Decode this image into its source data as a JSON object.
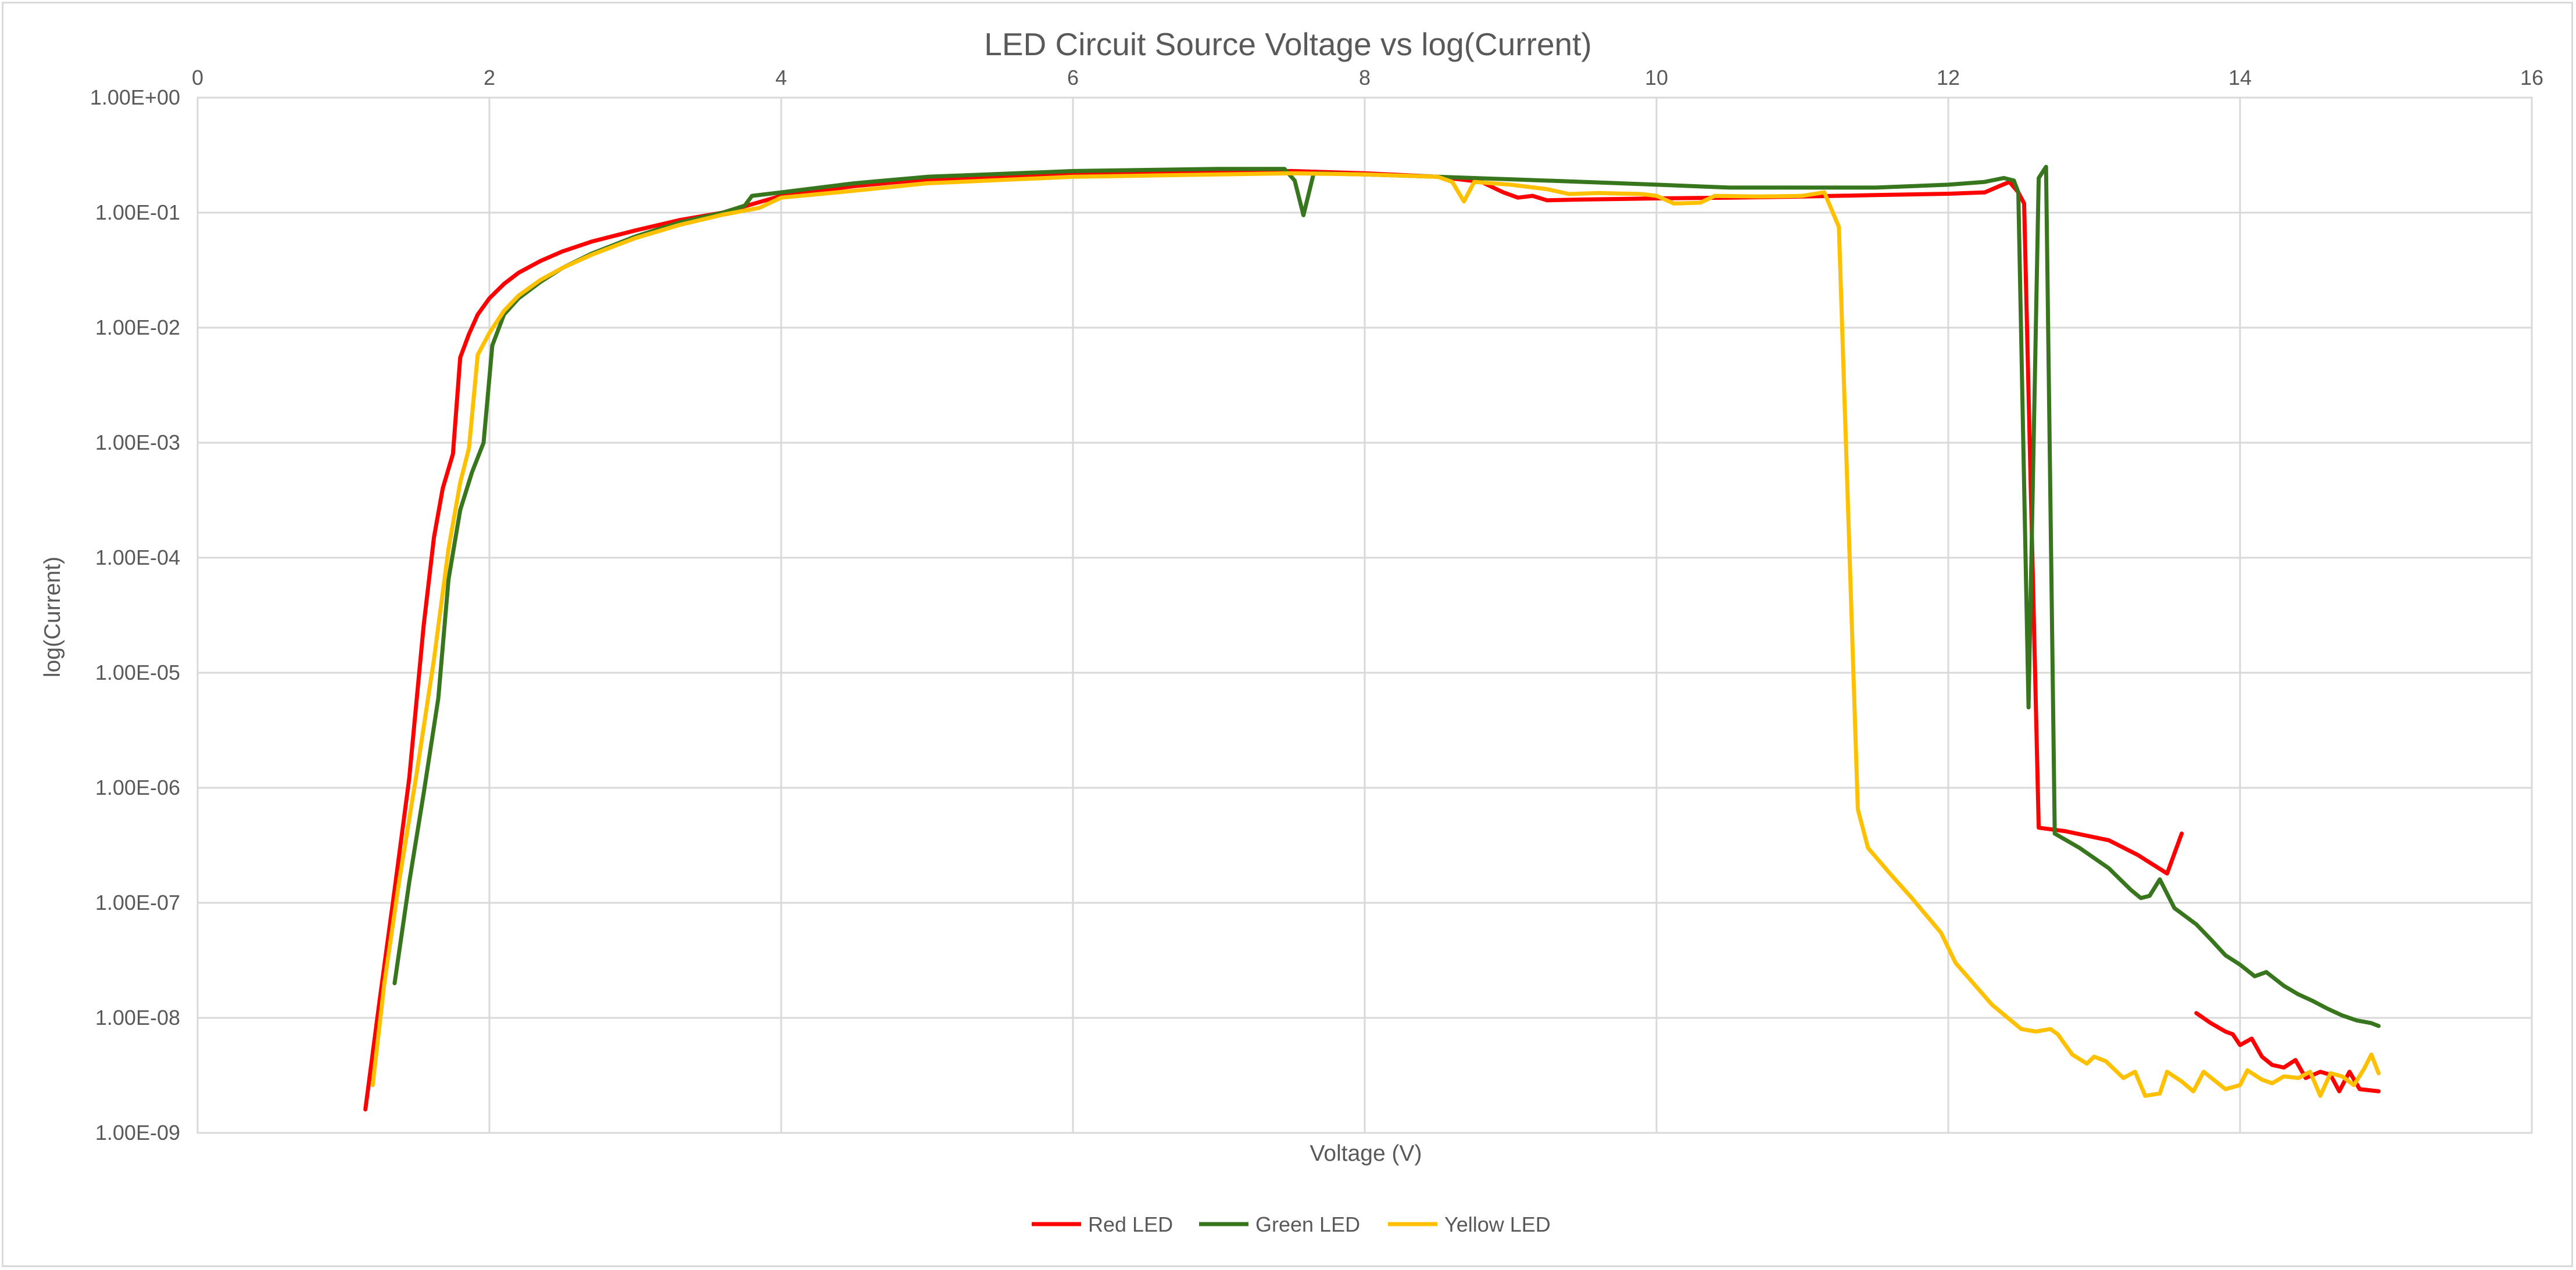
{
  "chart_data": {
    "type": "line",
    "title": "LED Circuit Source Voltage vs log(Current)",
    "xlabel": "Voltage (V)",
    "ylabel": "log(Current)",
    "xlim": [
      0,
      16
    ],
    "ylim": [
      1e-09,
      1
    ],
    "y_scale": "log",
    "x_ticks": [
      "0",
      "2",
      "4",
      "6",
      "8",
      "10",
      "12",
      "14",
      "16"
    ],
    "y_ticks": [
      "1.00E+00",
      "1.00E-01",
      "1.00E-02",
      "1.00E-03",
      "1.00E-04",
      "1.00E-05",
      "1.00E-06",
      "1.00E-07",
      "1.00E-08",
      "1.00E-09"
    ],
    "x_axis_position": "top",
    "grid": true,
    "legend": "bottom",
    "series": [
      {
        "name": "Red LED",
        "color": "#ff0000",
        "segments": [
          [
            [
              1.15,
              1.6e-09
            ],
            [
              1.25,
              1.5e-08
            ],
            [
              1.35,
              1.3e-07
            ],
            [
              1.45,
              1.2e-06
            ],
            [
              1.55,
              2.6e-05
            ],
            [
              1.62,
              0.00015
            ],
            [
              1.68,
              0.0004
            ],
            [
              1.75,
              0.0008
            ],
            [
              1.8,
              0.0055
            ],
            [
              1.86,
              0.0088
            ],
            [
              1.92,
              0.013
            ],
            [
              2.0,
              0.018
            ],
            [
              2.1,
              0.024
            ],
            [
              2.2,
              0.03
            ],
            [
              2.35,
              0.038
            ],
            [
              2.5,
              0.046
            ],
            [
              2.7,
              0.056
            ],
            [
              3.0,
              0.07
            ],
            [
              3.3,
              0.086
            ],
            [
              3.6,
              0.1
            ],
            [
              4.0,
              0.14
            ],
            [
              4.5,
              0.17
            ],
            [
              5.0,
              0.195
            ],
            [
              6.0,
              0.215
            ],
            [
              7.0,
              0.225
            ],
            [
              7.5,
              0.23
            ],
            [
              8.0,
              0.22
            ],
            [
              8.5,
              0.205
            ],
            [
              8.8,
              0.185
            ],
            [
              8.95,
              0.15
            ],
            [
              9.05,
              0.135
            ],
            [
              9.15,
              0.14
            ],
            [
              9.25,
              0.128
            ],
            [
              9.5,
              0.13
            ],
            [
              10.0,
              0.133
            ],
            [
              10.5,
              0.135
            ],
            [
              11.0,
              0.138
            ],
            [
              11.5,
              0.142
            ],
            [
              12.0,
              0.146
            ],
            [
              12.25,
              0.15
            ],
            [
              12.35,
              0.17
            ],
            [
              12.42,
              0.185
            ],
            [
              12.48,
              0.15
            ],
            [
              12.52,
              0.12
            ],
            [
              12.62,
              4.5e-07
            ],
            [
              12.8,
              4.2e-07
            ],
            [
              13.1,
              3.5e-07
            ],
            [
              13.3,
              2.6e-07
            ],
            [
              13.5,
              1.8e-07
            ],
            [
              13.6,
              4e-07
            ]
          ],
          [
            [
              13.7,
              1.1e-08
            ],
            [
              13.8,
              9e-09
            ],
            [
              13.9,
              7.6e-09
            ],
            [
              13.95,
              7.2e-09
            ],
            [
              14.0,
              5.8e-09
            ],
            [
              14.08,
              6.6e-09
            ],
            [
              14.15,
              4.6e-09
            ],
            [
              14.22,
              3.9e-09
            ],
            [
              14.3,
              3.7e-09
            ],
            [
              14.38,
              4.3e-09
            ],
            [
              14.45,
              3e-09
            ],
            [
              14.55,
              3.4e-09
            ],
            [
              14.62,
              3.2e-09
            ],
            [
              14.68,
              2.3e-09
            ],
            [
              14.75,
              3.4e-09
            ],
            [
              14.82,
              2.4e-09
            ],
            [
              14.95,
              2.3e-09
            ]
          ]
        ]
      },
      {
        "name": "Green LED",
        "color": "#38761d",
        "segments": [
          [
            [
              1.35,
              2e-08
            ],
            [
              1.45,
              1.5e-07
            ],
            [
              1.55,
              9e-07
            ],
            [
              1.65,
              6e-06
            ],
            [
              1.72,
              6.5e-05
            ],
            [
              1.8,
              0.00026
            ],
            [
              1.88,
              0.00055
            ],
            [
              1.96,
              0.001
            ],
            [
              2.02,
              0.007
            ],
            [
              2.1,
              0.013
            ],
            [
              2.2,
              0.018
            ],
            [
              2.35,
              0.025
            ],
            [
              2.5,
              0.033
            ],
            [
              2.7,
              0.044
            ],
            [
              3.0,
              0.062
            ],
            [
              3.3,
              0.082
            ],
            [
              3.6,
              0.1
            ],
            [
              3.75,
              0.115
            ],
            [
              3.8,
              0.14
            ],
            [
              4.0,
              0.15
            ],
            [
              4.5,
              0.18
            ],
            [
              5.0,
              0.205
            ],
            [
              6.0,
              0.23
            ],
            [
              7.0,
              0.24
            ],
            [
              7.45,
              0.24
            ],
            [
              7.52,
              0.19
            ],
            [
              7.58,
              0.095
            ],
            [
              7.65,
              0.22
            ],
            [
              8.0,
              0.215
            ],
            [
              8.5,
              0.205
            ],
            [
              9.0,
              0.195
            ],
            [
              9.5,
              0.185
            ],
            [
              10.0,
              0.175
            ],
            [
              10.5,
              0.165
            ],
            [
              11.0,
              0.165
            ],
            [
              11.5,
              0.165
            ],
            [
              12.0,
              0.175
            ],
            [
              12.25,
              0.185
            ],
            [
              12.38,
              0.2
            ],
            [
              12.45,
              0.19
            ],
            [
              12.48,
              0.15
            ],
            [
              12.55,
              5e-06
            ],
            [
              12.62,
              0.2
            ],
            [
              12.67,
              0.25
            ],
            [
              12.73,
              4e-07
            ],
            [
              12.9,
              3e-07
            ],
            [
              13.1,
              2e-07
            ],
            [
              13.25,
              1.3e-07
            ],
            [
              13.32,
              1.1e-07
            ],
            [
              13.38,
              1.15e-07
            ],
            [
              13.45,
              1.6e-07
            ],
            [
              13.55,
              9e-08
            ],
            [
              13.7,
              6.5e-08
            ],
            [
              13.8,
              4.8e-08
            ],
            [
              13.9,
              3.5e-08
            ],
            [
              14.0,
              2.9e-08
            ],
            [
              14.1,
              2.3e-08
            ],
            [
              14.18,
              2.5e-08
            ],
            [
              14.3,
              1.9e-08
            ],
            [
              14.4,
              1.6e-08
            ],
            [
              14.5,
              1.4e-08
            ],
            [
              14.6,
              1.2e-08
            ],
            [
              14.7,
              1.05e-08
            ],
            [
              14.8,
              9.5e-09
            ],
            [
              14.9,
              9e-09
            ],
            [
              14.95,
              8.5e-09
            ]
          ]
        ]
      },
      {
        "name": "Yellow LED",
        "color": "#ffc000",
        "segments": [
          [
            [
              1.2,
              2.6e-09
            ],
            [
              1.28,
              2e-08
            ],
            [
              1.38,
              1.5e-07
            ],
            [
              1.5,
              1.3e-06
            ],
            [
              1.62,
              1.3e-05
            ],
            [
              1.72,
              0.00012
            ],
            [
              1.8,
              0.00045
            ],
            [
              1.86,
              0.0009
            ],
            [
              1.92,
              0.0058
            ],
            [
              2.0,
              0.009
            ],
            [
              2.1,
              0.014
            ],
            [
              2.2,
              0.019
            ],
            [
              2.35,
              0.026
            ],
            [
              2.5,
              0.033
            ],
            [
              2.7,
              0.043
            ],
            [
              3.0,
              0.06
            ],
            [
              3.3,
              0.078
            ],
            [
              3.6,
              0.096
            ],
            [
              3.85,
              0.11
            ],
            [
              4.0,
              0.135
            ],
            [
              4.5,
              0.155
            ],
            [
              5.0,
              0.18
            ],
            [
              6.0,
              0.205
            ],
            [
              7.0,
              0.215
            ],
            [
              7.5,
              0.22
            ],
            [
              8.0,
              0.215
            ],
            [
              8.5,
              0.205
            ],
            [
              8.6,
              0.185
            ],
            [
              8.68,
              0.125
            ],
            [
              8.75,
              0.185
            ],
            [
              9.0,
              0.175
            ],
            [
              9.25,
              0.16
            ],
            [
              9.4,
              0.145
            ],
            [
              9.6,
              0.148
            ],
            [
              9.9,
              0.145
            ],
            [
              10.0,
              0.14
            ],
            [
              10.12,
              0.12
            ],
            [
              10.3,
              0.122
            ],
            [
              10.4,
              0.14
            ],
            [
              10.7,
              0.138
            ],
            [
              11.0,
              0.14
            ],
            [
              11.15,
              0.15
            ],
            [
              11.25,
              0.075
            ],
            [
              11.38,
              6.5e-07
            ],
            [
              11.45,
              3e-07
            ],
            [
              11.6,
              1.8e-07
            ],
            [
              11.75,
              1.1e-07
            ],
            [
              11.95,
              5.5e-08
            ],
            [
              12.05,
              3e-08
            ],
            [
              12.3,
              1.3e-08
            ],
            [
              12.5,
              8e-09
            ],
            [
              12.6,
              7.6e-09
            ],
            [
              12.7,
              8e-09
            ],
            [
              12.75,
              7.2e-09
            ],
            [
              12.85,
              4.8e-09
            ],
            [
              12.95,
              4e-09
            ],
            [
              13.0,
              4.6e-09
            ],
            [
              13.08,
              4.2e-09
            ],
            [
              13.2,
              3e-09
            ],
            [
              13.28,
              3.4e-09
            ],
            [
              13.35,
              2.1e-09
            ],
            [
              13.45,
              2.2e-09
            ],
            [
              13.5,
              3.4e-09
            ],
            [
              13.6,
              2.8e-09
            ],
            [
              13.68,
              2.3e-09
            ],
            [
              13.75,
              3.4e-09
            ],
            [
              13.9,
              2.4e-09
            ],
            [
              14.0,
              2.6e-09
            ],
            [
              14.05,
              3.5e-09
            ],
            [
              14.15,
              2.9e-09
            ],
            [
              14.22,
              2.7e-09
            ],
            [
              14.3,
              3.1e-09
            ],
            [
              14.4,
              3e-09
            ],
            [
              14.48,
              3.4e-09
            ],
            [
              14.55,
              2.1e-09
            ],
            [
              14.62,
              3.3e-09
            ],
            [
              14.7,
              3.1e-09
            ],
            [
              14.78,
              2.6e-09
            ],
            [
              14.85,
              3.6e-09
            ],
            [
              14.9,
              4.8e-09
            ],
            [
              14.95,
              3.3e-09
            ]
          ]
        ]
      }
    ]
  }
}
